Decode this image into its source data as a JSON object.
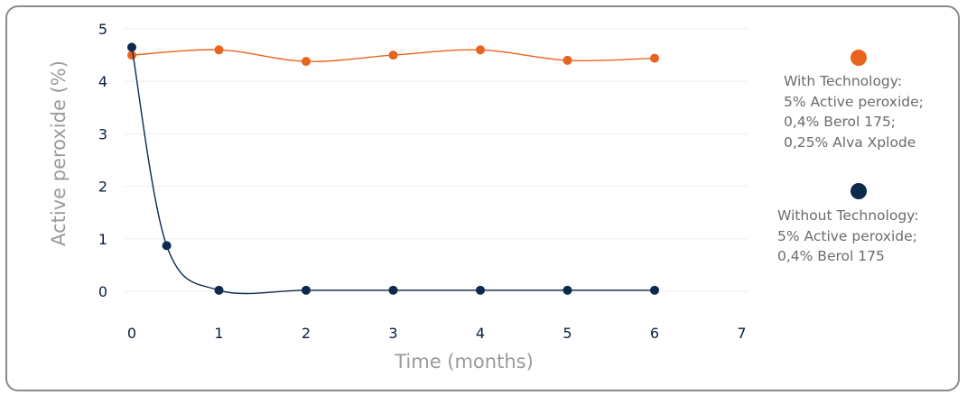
{
  "chart_data": {
    "type": "line",
    "xlabel": "Time (months)",
    "ylabel": "Active peroxide (%)",
    "xlim": [
      0,
      7
    ],
    "ylim": [
      0,
      5
    ],
    "x_ticks": [
      "0",
      "1",
      "2",
      "3",
      "4",
      "5",
      "6",
      "7"
    ],
    "y_ticks": [
      "0",
      "1",
      "2",
      "3",
      "4",
      "5"
    ],
    "grid": "horizontal",
    "legend_position": "right",
    "series": [
      {
        "legend_lines": [
          "With Technology:",
          "5% Active peroxide;",
          "0,4% Berol 175;",
          "0,25% Alva Xplode"
        ],
        "color": "#e8641e",
        "x": [
          0,
          1,
          2,
          3,
          4,
          5,
          6
        ],
        "y": [
          4.5,
          4.6,
          4.38,
          4.5,
          4.6,
          4.4,
          4.44
        ]
      },
      {
        "legend_lines": [
          "Without Technology:",
          "5% Active peroxide;",
          "0,4% Berol 175"
        ],
        "color": "#0d2a4e",
        "x": [
          0,
          0.4,
          1,
          2,
          3,
          4,
          5,
          6
        ],
        "y": [
          4.65,
          0.87,
          0.02,
          0.02,
          0.02,
          0.02,
          0.02,
          0.02
        ]
      }
    ]
  }
}
